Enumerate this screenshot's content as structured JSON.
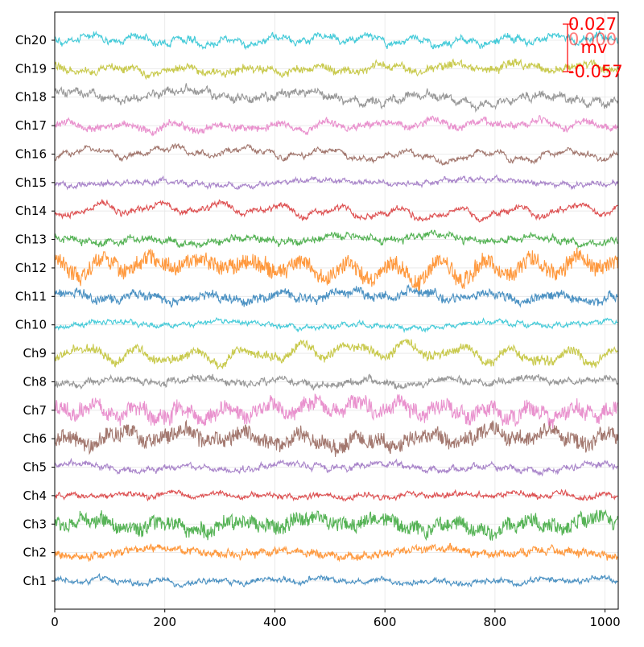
{
  "chart_data": {
    "type": "line",
    "title": "",
    "xlabel": "",
    "ylabel": "",
    "xlim": [
      0,
      1024
    ],
    "x_ticks": [
      0,
      200,
      400,
      600,
      800,
      1000
    ],
    "grid": true,
    "n_samples": 1024,
    "channels": [
      "Ch1",
      "Ch2",
      "Ch3",
      "Ch4",
      "Ch5",
      "Ch6",
      "Ch7",
      "Ch8",
      "Ch9",
      "Ch10",
      "Ch11",
      "Ch12",
      "Ch13",
      "Ch14",
      "Ch15",
      "Ch16",
      "Ch17",
      "Ch18",
      "Ch19",
      "Ch20"
    ],
    "colors": [
      "#1f77b4",
      "#ff7f0e",
      "#2ca02c",
      "#d62728",
      "#9467bd",
      "#8c564b",
      "#e377c2",
      "#7f7f7f",
      "#bcbd22",
      "#17becf",
      "#1f77b4",
      "#ff7f0e",
      "#2ca02c",
      "#d62728",
      "#9467bd",
      "#8c564b",
      "#e377c2",
      "#7f7f7f",
      "#bcbd22",
      "#17becf"
    ],
    "channel_amplitude": [
      0.35,
      0.55,
      0.9,
      0.3,
      0.5,
      1.0,
      1.0,
      0.45,
      1.1,
      0.45,
      0.6,
      1.3,
      0.55,
      0.9,
      0.45,
      0.8,
      0.6,
      0.9,
      0.55,
      0.6
    ],
    "channel_noise": [
      0.15,
      0.35,
      0.85,
      0.15,
      0.2,
      0.9,
      0.9,
      0.3,
      0.45,
      0.1,
      0.45,
      1.0,
      0.3,
      0.2,
      0.15,
      0.15,
      0.3,
      0.35,
      0.35,
      0.25
    ],
    "scale_bar": {
      "color": "#ff0000",
      "unit": "mv",
      "top_label": "0.027",
      "mid_label": "0.000",
      "bottom_label": "-0.057"
    }
  }
}
